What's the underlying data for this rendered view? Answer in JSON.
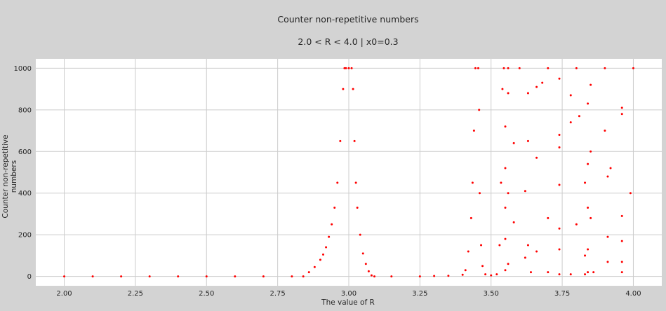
{
  "chart_data": {
    "type": "scatter",
    "title": "Counter non-repetitive numbers",
    "subtitle": "2.0 < R < 4.0  |  x0=0.3",
    "xlabel": "The value of R",
    "ylabel": "Counter non-repetitive numbers",
    "xlim": [
      1.9,
      4.1
    ],
    "ylim": [
      -45,
      1045
    ],
    "xticks": [
      "2.00",
      "2.25",
      "2.50",
      "2.75",
      "3.00",
      "3.25",
      "3.50",
      "3.75",
      "4.00"
    ],
    "yticks": [
      "0",
      "200",
      "400",
      "600",
      "800",
      "1000"
    ],
    "grid": true,
    "series_color": "#ff0000",
    "points": [
      [
        2.0,
        0
      ],
      [
        2.1,
        0
      ],
      [
        2.2,
        0
      ],
      [
        2.3,
        0
      ],
      [
        2.4,
        0
      ],
      [
        2.5,
        0
      ],
      [
        2.6,
        0
      ],
      [
        2.7,
        0
      ],
      [
        2.8,
        0
      ],
      [
        2.84,
        0
      ],
      [
        2.86,
        20
      ],
      [
        2.88,
        45
      ],
      [
        2.9,
        80
      ],
      [
        2.91,
        105
      ],
      [
        2.92,
        140
      ],
      [
        2.93,
        190
      ],
      [
        2.94,
        250
      ],
      [
        2.95,
        330
      ],
      [
        2.96,
        450
      ],
      [
        2.97,
        650
      ],
      [
        2.98,
        900
      ],
      [
        2.985,
        1000
      ],
      [
        2.99,
        1000
      ],
      [
        3.0,
        1000
      ],
      [
        3.01,
        1000
      ],
      [
        3.015,
        900
      ],
      [
        3.02,
        650
      ],
      [
        3.025,
        450
      ],
      [
        3.03,
        330
      ],
      [
        3.04,
        200
      ],
      [
        3.05,
        110
      ],
      [
        3.06,
        60
      ],
      [
        3.07,
        25
      ],
      [
        3.08,
        5
      ],
      [
        3.09,
        0
      ],
      [
        3.15,
        0
      ],
      [
        3.25,
        0
      ],
      [
        3.3,
        2
      ],
      [
        3.35,
        3
      ],
      [
        3.4,
        8
      ],
      [
        3.41,
        30
      ],
      [
        3.42,
        120
      ],
      [
        3.43,
        280
      ],
      [
        3.435,
        450
      ],
      [
        3.44,
        700
      ],
      [
        3.445,
        1000
      ],
      [
        3.455,
        1000
      ],
      [
        3.458,
        800
      ],
      [
        3.46,
        400
      ],
      [
        3.465,
        150
      ],
      [
        3.47,
        50
      ],
      [
        3.48,
        10
      ],
      [
        3.5,
        5
      ],
      [
        3.52,
        10
      ],
      [
        3.53,
        150
      ],
      [
        3.535,
        450
      ],
      [
        3.54,
        900
      ],
      [
        3.545,
        1000
      ],
      [
        3.56,
        1000
      ],
      [
        3.6,
        1000
      ],
      [
        3.7,
        1000
      ],
      [
        3.8,
        1000
      ],
      [
        3.9,
        1000
      ],
      [
        4.0,
        1000
      ],
      [
        3.55,
        30
      ],
      [
        3.55,
        180
      ],
      [
        3.55,
        330
      ],
      [
        3.55,
        520
      ],
      [
        3.55,
        720
      ],
      [
        3.56,
        60
      ],
      [
        3.56,
        400
      ],
      [
        3.56,
        880
      ],
      [
        3.58,
        260
      ],
      [
        3.58,
        640
      ],
      [
        3.62,
        90
      ],
      [
        3.62,
        410
      ],
      [
        3.63,
        150
      ],
      [
        3.63,
        650
      ],
      [
        3.63,
        880
      ],
      [
        3.64,
        20
      ],
      [
        3.66,
        120
      ],
      [
        3.66,
        570
      ],
      [
        3.66,
        910
      ],
      [
        3.68,
        930
      ],
      [
        3.7,
        280
      ],
      [
        3.7,
        20
      ],
      [
        3.74,
        10
      ],
      [
        3.74,
        130
      ],
      [
        3.74,
        230
      ],
      [
        3.74,
        440
      ],
      [
        3.74,
        620
      ],
      [
        3.74,
        680
      ],
      [
        3.74,
        950
      ],
      [
        3.78,
        10
      ],
      [
        3.78,
        740
      ],
      [
        3.78,
        870
      ],
      [
        3.8,
        250
      ],
      [
        3.81,
        770
      ],
      [
        3.83,
        10
      ],
      [
        3.83,
        100
      ],
      [
        3.83,
        450
      ],
      [
        3.84,
        20
      ],
      [
        3.84,
        130
      ],
      [
        3.84,
        330
      ],
      [
        3.84,
        540
      ],
      [
        3.84,
        830
      ],
      [
        3.85,
        280
      ],
      [
        3.85,
        600
      ],
      [
        3.85,
        920
      ],
      [
        3.86,
        20
      ],
      [
        3.9,
        700
      ],
      [
        3.91,
        70
      ],
      [
        3.91,
        190
      ],
      [
        3.91,
        480
      ],
      [
        3.92,
        520
      ],
      [
        3.96,
        20
      ],
      [
        3.96,
        70
      ],
      [
        3.96,
        170
      ],
      [
        3.96,
        290
      ],
      [
        3.96,
        780
      ],
      [
        3.96,
        810
      ],
      [
        3.99,
        400
      ]
    ]
  }
}
